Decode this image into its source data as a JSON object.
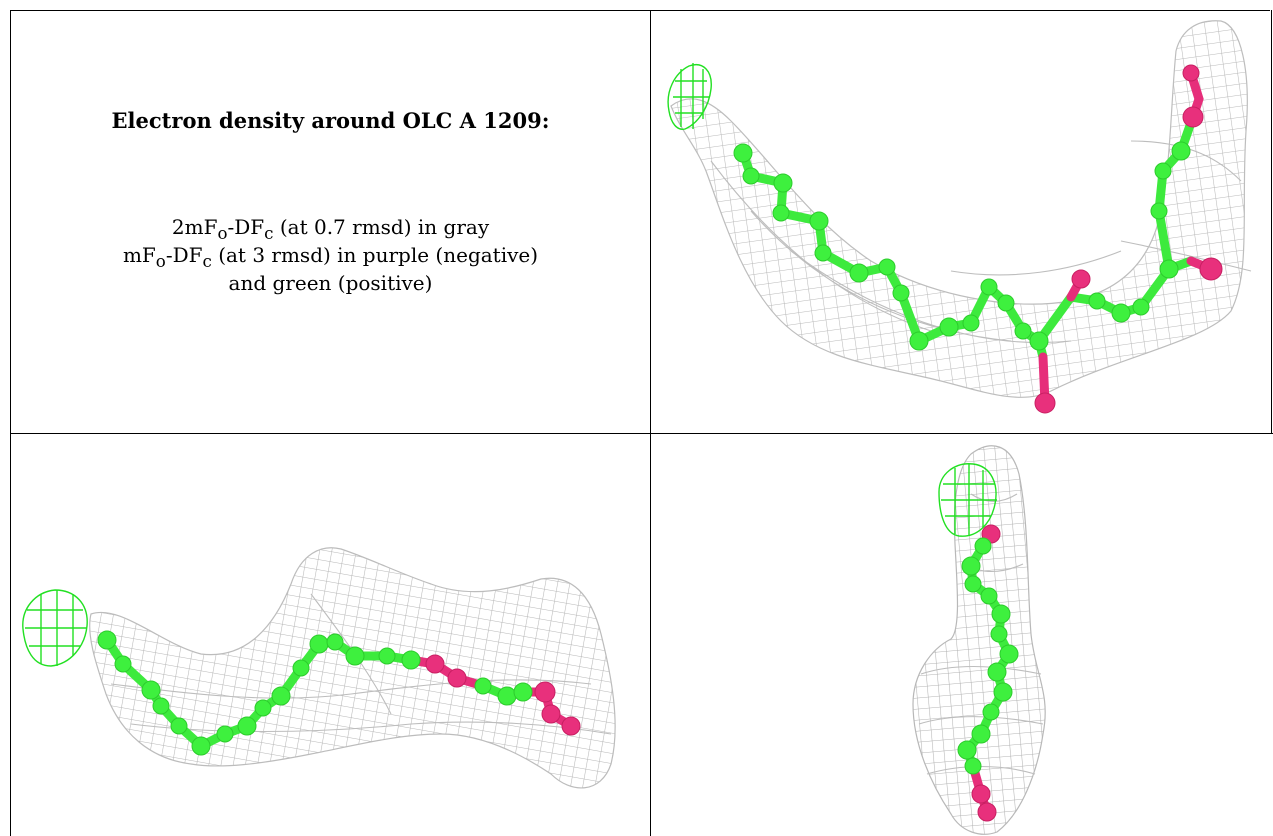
{
  "caption": {
    "title": "Electron density around OLC A 1209:",
    "line1_prefix": "2mF",
    "line1_sub_o": "o",
    "line1_mid": "-DF",
    "line1_sub_c": "c",
    "line1_suffix": " (at 0.7 rmsd) in gray",
    "line2_prefix": "mF",
    "line2_sub_o": "o",
    "line2_mid": "-DF",
    "line2_sub_c": "c",
    "line2_suffix": " (at 3 rmsd) in purple (negative)",
    "line3": "and green (positive)"
  },
  "colors": {
    "mesh": "#bdbdbd",
    "carbon": "#3ef03e",
    "oxygen": "#e8307c",
    "positive_density": "#22e022",
    "border": "#000000"
  }
}
